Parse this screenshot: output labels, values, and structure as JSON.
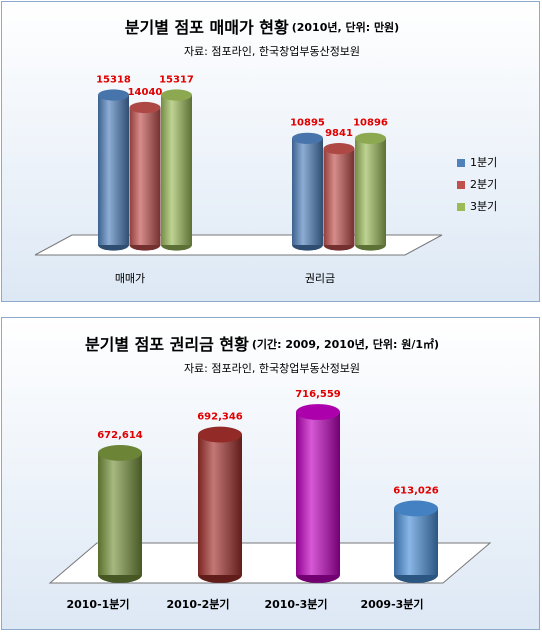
{
  "chart_data": [
    {
      "type": "bar",
      "title": "분기별 점포 매매가 현황",
      "subtitle": "(2010년, 단위: 만원)",
      "source": "자료: 점포라인, 한국창업부동산정보원",
      "categories": [
        "매매가",
        "권리금"
      ],
      "series": [
        {
          "name": "1분기",
          "color": "#4f81bd",
          "values": [
            15318,
            10895
          ]
        },
        {
          "name": "2분기",
          "color": "#c0504d",
          "values": [
            14040,
            9841
          ]
        },
        {
          "name": "3분기",
          "color": "#9bbb59",
          "values": [
            15317,
            10896
          ]
        }
      ],
      "legend": "right"
    },
    {
      "type": "bar",
      "title": "분기별 점포 권리금 현황",
      "subtitle": "(기간: 2009, 2010년, 단위: 원/1㎡)",
      "source": "자료: 점포라인, 한국창업부동산정보원",
      "categories": [
        "2010-1분기",
        "2010-2분기",
        "2010-3분기",
        "2009-3분기"
      ],
      "values": [
        672614,
        692346,
        716559,
        613026
      ],
      "value_labels": [
        "672,614",
        "692,346",
        "716,559",
        "613,026"
      ],
      "colors": [
        "#77933c",
        "#a2302c",
        "#c000c0",
        "#4a8fd8"
      ]
    }
  ]
}
